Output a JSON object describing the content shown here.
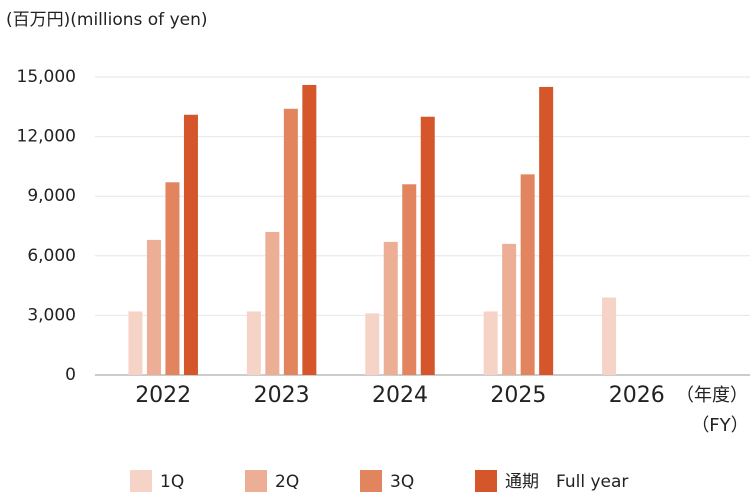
{
  "chart_data": {
    "type": "bar",
    "unit_label": "(百万円)(millions of yen)",
    "x_axis_label": [
      "（年度）",
      "（FY）"
    ],
    "categories": [
      "2022",
      "2023",
      "2024",
      "2025",
      "2026"
    ],
    "series": [
      {
        "name": "1Q",
        "color": "#f5d3c6",
        "values": [
          3200,
          3200,
          3100,
          3200,
          3900
        ]
      },
      {
        "name": "2Q",
        "color": "#ecae94",
        "values": [
          6800,
          7200,
          6700,
          6600,
          null
        ]
      },
      {
        "name": "3Q",
        "color": "#e2855f",
        "values": [
          9700,
          13400,
          9600,
          10100,
          null
        ]
      },
      {
        "name": "通期　Full year",
        "color": "#d4562a",
        "values": [
          13100,
          14600,
          13000,
          14500,
          null
        ]
      }
    ],
    "ylim": [
      0,
      15000
    ],
    "yticks": [
      0,
      {
        "value": 3000,
        "label": "3,000"
      },
      {
        "value": 6000,
        "label": "6,000"
      },
      {
        "value": 9000,
        "label": "9,000"
      },
      {
        "value": 12000,
        "label": "12,000"
      },
      {
        "value": 15000,
        "label": "15,000"
      }
    ],
    "grid": true
  }
}
